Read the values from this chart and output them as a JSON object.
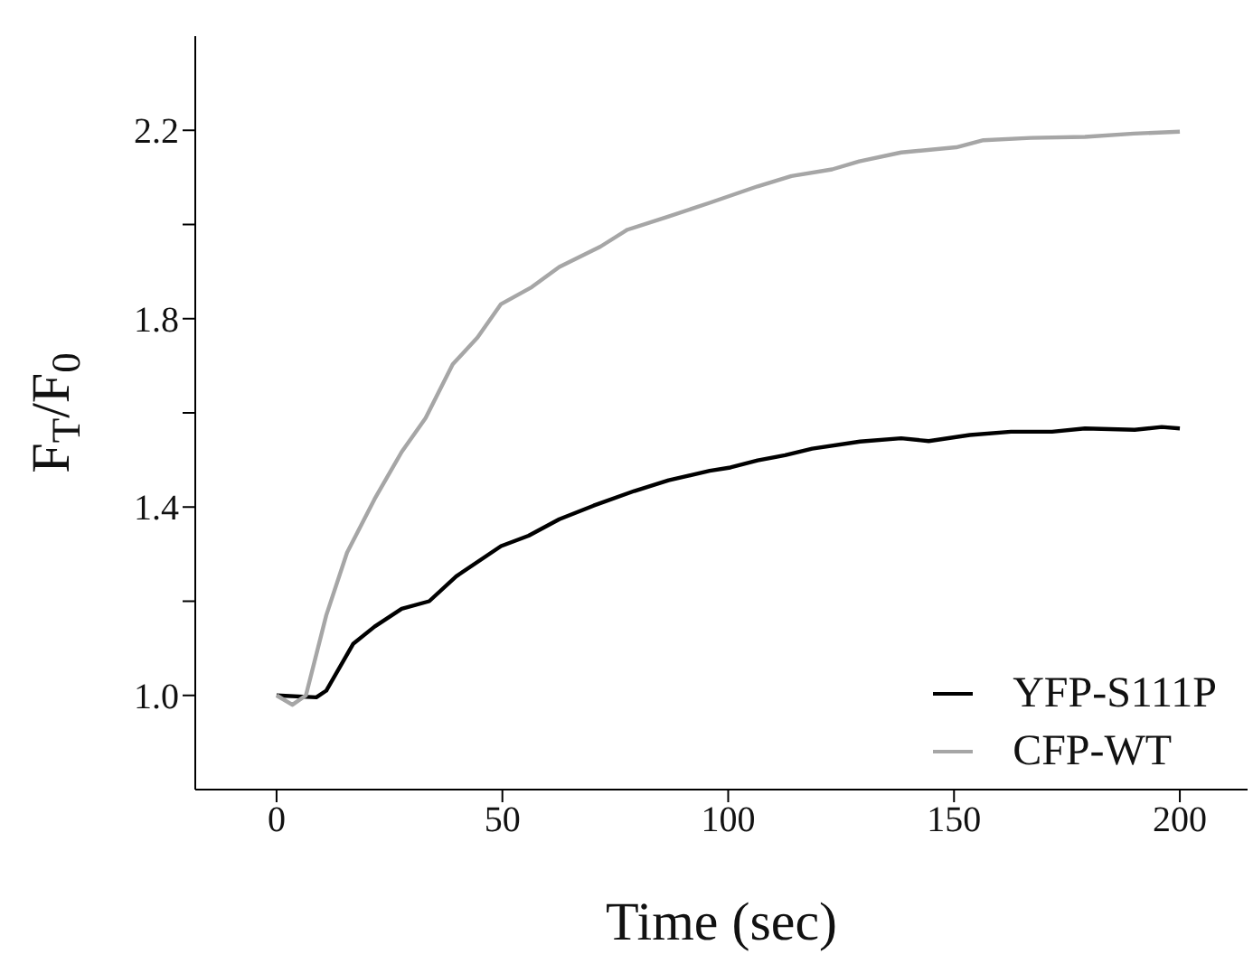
{
  "chart_data": {
    "type": "line",
    "xlabel": "Time (sec)",
    "ylabel": "F$_{T}$/F$_{0}$",
    "xlim": [
      -18,
      215
    ],
    "xticks": [
      0,
      50,
      100,
      150,
      200
    ],
    "ylim": [
      0.8,
      2.4
    ],
    "yticks": [
      {
        "value": 1.0,
        "label": "1.0"
      },
      {
        "value": 1.2,
        "label": null
      },
      {
        "value": 1.4,
        "label": "1.4"
      },
      {
        "value": 1.6,
        "label": null
      },
      {
        "value": 1.8,
        "label": "1.8"
      },
      {
        "value": 2.0,
        "label": null
      },
      {
        "value": 2.2,
        "label": "2.2"
      }
    ],
    "grid": false,
    "legend": "bottom right",
    "marker": "none",
    "line_style": "solid",
    "series": [
      {
        "name": "YFP-S111P",
        "color": "#000000",
        "x": [
          0,
          8.8,
          11,
          17,
          21.7,
          27.7,
          33.8,
          39.8,
          49.7,
          55.8,
          62.6,
          70.2,
          79.2,
          86.8,
          95.9,
          100.5,
          106.5,
          112.6,
          118.6,
          129.2,
          138.3,
          144.4,
          153.5,
          162.6,
          171.7,
          179,
          190,
          196,
          200
        ],
        "values": [
          1.0,
          0.996,
          1.01,
          1.11,
          1.146,
          1.184,
          1.2,
          1.253,
          1.317,
          1.339,
          1.374,
          1.403,
          1.434,
          1.457,
          1.477,
          1.484,
          1.499,
          1.51,
          1.524,
          1.539,
          1.546,
          1.54,
          1.553,
          1.56,
          1.56,
          1.567,
          1.564,
          1.57,
          1.567
        ]
      },
      {
        "name": "CFP-WT",
        "color": "#a6a6a6",
        "x": [
          0,
          3.5,
          6.5,
          11,
          15.6,
          21.7,
          27.7,
          33,
          39,
          44.5,
          49.7,
          56.5,
          62.6,
          71.7,
          77.7,
          86.8,
          95.9,
          106.5,
          114,
          123,
          129,
          138.3,
          150.5,
          156.5,
          167,
          179,
          189.8,
          200
        ],
        "values": [
          1.0,
          0.98,
          1.0,
          1.17,
          1.303,
          1.417,
          1.517,
          1.589,
          1.703,
          1.76,
          1.831,
          1.867,
          1.91,
          1.953,
          1.989,
          2.017,
          2.046,
          2.081,
          2.103,
          2.117,
          2.134,
          2.153,
          2.164,
          2.179,
          2.184,
          2.186,
          2.193,
          2.197
        ]
      }
    ]
  }
}
